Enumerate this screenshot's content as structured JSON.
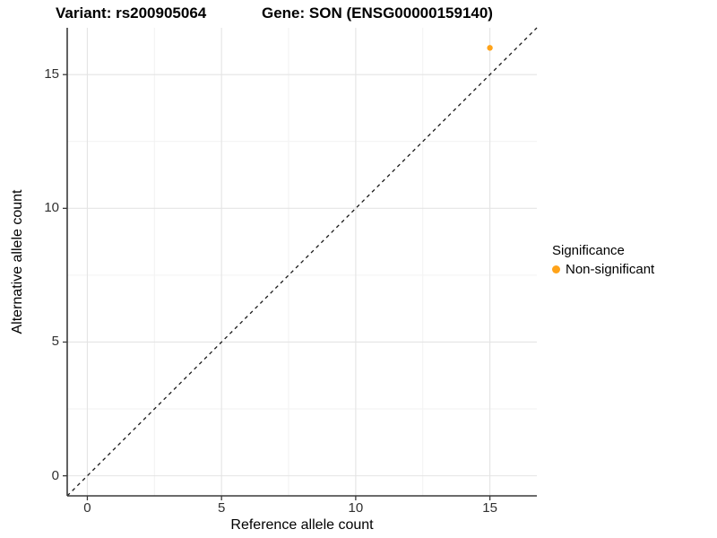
{
  "chart_data": {
    "type": "scatter",
    "titles": [
      "Variant: rs200905064",
      "Gene: SON (ENSG00000159140)"
    ],
    "xlabel": "Reference allele count",
    "ylabel": "Alternative allele count",
    "xlim": [
      -0.75,
      16.75
    ],
    "ylim": [
      -0.75,
      16.75
    ],
    "x_ticks": [
      0,
      5,
      10,
      15
    ],
    "y_ticks": [
      0,
      5,
      10,
      15
    ],
    "x_minor_ticks": [
      2.5,
      7.5,
      12.5
    ],
    "y_minor_ticks": [
      2.5,
      7.5,
      12.5
    ],
    "grid": true,
    "legend_position": "right",
    "legend": {
      "title": "Significance",
      "items": [
        {
          "label": "Non-significant",
          "color": "#FFA319"
        }
      ]
    },
    "series": [
      {
        "name": "Non-significant",
        "color": "#FFA319",
        "points": [
          [
            15,
            16
          ]
        ]
      }
    ],
    "reference_line": {
      "kind": "identity",
      "equation": "y = x",
      "style": "dashed",
      "color": "#1a1a1a"
    }
  },
  "style": {
    "accent_orange": "#FFA319",
    "axis_line_color": "#3a3a3a",
    "major_grid_color": "#e4e4e4",
    "minor_grid_color": "#f2f2f2",
    "tick_label_color": "#303030",
    "background": "#ffffff"
  }
}
